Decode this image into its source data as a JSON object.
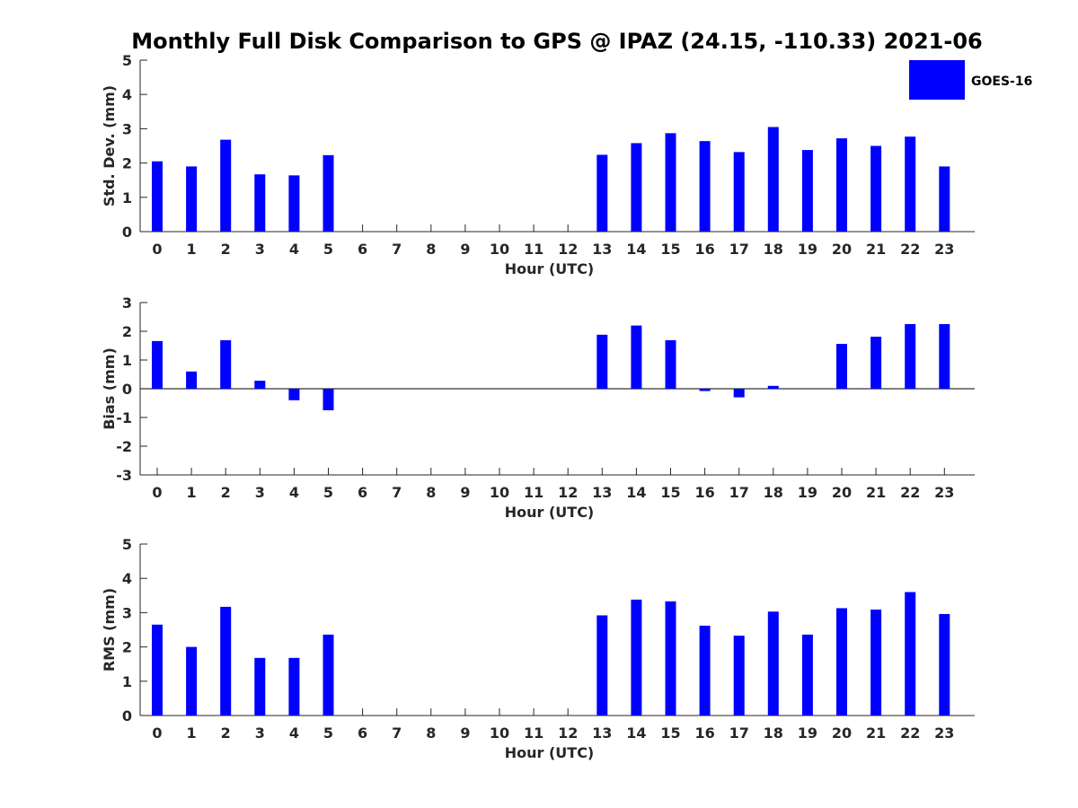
{
  "chart_data": {
    "title": "Monthly Full Disk Comparison to GPS @ IPAZ (24.15, -110.33) 2021-06",
    "legend": {
      "label": "GOES-16",
      "color": "#0000ff",
      "position": "top-right"
    },
    "categories": [
      "0",
      "1",
      "2",
      "3",
      "4",
      "5",
      "6",
      "7",
      "8",
      "9",
      "10",
      "11",
      "12",
      "13",
      "14",
      "15",
      "16",
      "17",
      "18",
      "19",
      "20",
      "21",
      "22",
      "23"
    ],
    "panels": [
      {
        "type": "bar",
        "ylabel": "Std. Dev. (mm)",
        "xlabel": "Hour (UTC)",
        "ylim": [
          0,
          5
        ],
        "yticks": [
          "0",
          "1",
          "2",
          "3",
          "4",
          "5"
        ],
        "values": [
          2.05,
          1.9,
          2.68,
          1.67,
          1.64,
          2.23,
          null,
          null,
          null,
          null,
          null,
          null,
          null,
          2.24,
          2.58,
          2.87,
          2.64,
          2.32,
          3.05,
          2.38,
          2.72,
          2.5,
          2.77,
          1.9
        ]
      },
      {
        "type": "bar",
        "ylabel": "Bias (mm)",
        "xlabel": "Hour (UTC)",
        "ylim": [
          -3,
          3
        ],
        "yticks": [
          "-3",
          "-2",
          "-1",
          "0",
          "1",
          "2",
          "3"
        ],
        "values": [
          1.66,
          0.6,
          1.69,
          0.28,
          -0.4,
          -0.75,
          null,
          null,
          null,
          null,
          null,
          null,
          null,
          1.88,
          2.2,
          1.69,
          -0.08,
          -0.3,
          0.1,
          null,
          1.56,
          1.81,
          2.25,
          2.25
        ]
      },
      {
        "type": "bar",
        "ylabel": "RMS (mm)",
        "xlabel": "Hour (UTC)",
        "ylim": [
          0,
          5
        ],
        "yticks": [
          "0",
          "1",
          "2",
          "3",
          "4",
          "5"
        ],
        "values": [
          2.65,
          2.0,
          3.17,
          1.68,
          1.68,
          2.36,
          null,
          null,
          null,
          null,
          null,
          null,
          null,
          2.92,
          3.38,
          3.33,
          2.62,
          2.33,
          3.03,
          2.36,
          3.13,
          3.09,
          3.6,
          2.96
        ]
      }
    ]
  }
}
